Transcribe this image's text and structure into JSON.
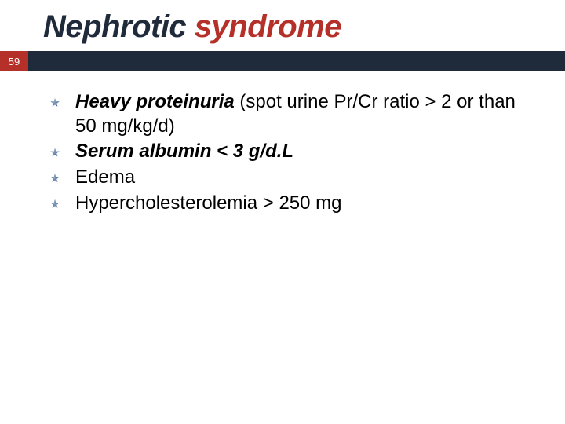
{
  "slide": {
    "title": {
      "part1": "Nephrotic",
      "part2": " syndrome",
      "color_part1": "#1f2a3a",
      "color_part2": "#b43028",
      "fontsize": 40,
      "font_style": "bold italic"
    },
    "ribbon": {
      "badge_text": "59",
      "badge_bg": "#b43028",
      "badge_color": "#ffffff",
      "bar_bg": "#1f2a3a",
      "height": 26
    },
    "bullets": [
      {
        "runs": [
          {
            "text": "Heavy proteinuria",
            "bold": true,
            "italic": true
          },
          {
            "text": " (spot urine Pr/Cr ratio > 2 or than 50 mg/kg/d)",
            "bold": false,
            "italic": false
          }
        ]
      },
      {
        "runs": [
          {
            "text": "Serum albumin < 3 g/d.L",
            "bold": true,
            "italic": true
          }
        ]
      },
      {
        "runs": [
          {
            "text": "Edema",
            "bold": false,
            "italic": false
          }
        ]
      },
      {
        "runs": [
          {
            "text": "Hypercholesterolemia > 250 mg",
            "bold": false,
            "italic": false
          }
        ]
      }
    ],
    "body_fontsize": 24,
    "body_color": "#000000",
    "bullet_marker_color": "#5a7aa0",
    "background_color": "#ffffff"
  }
}
